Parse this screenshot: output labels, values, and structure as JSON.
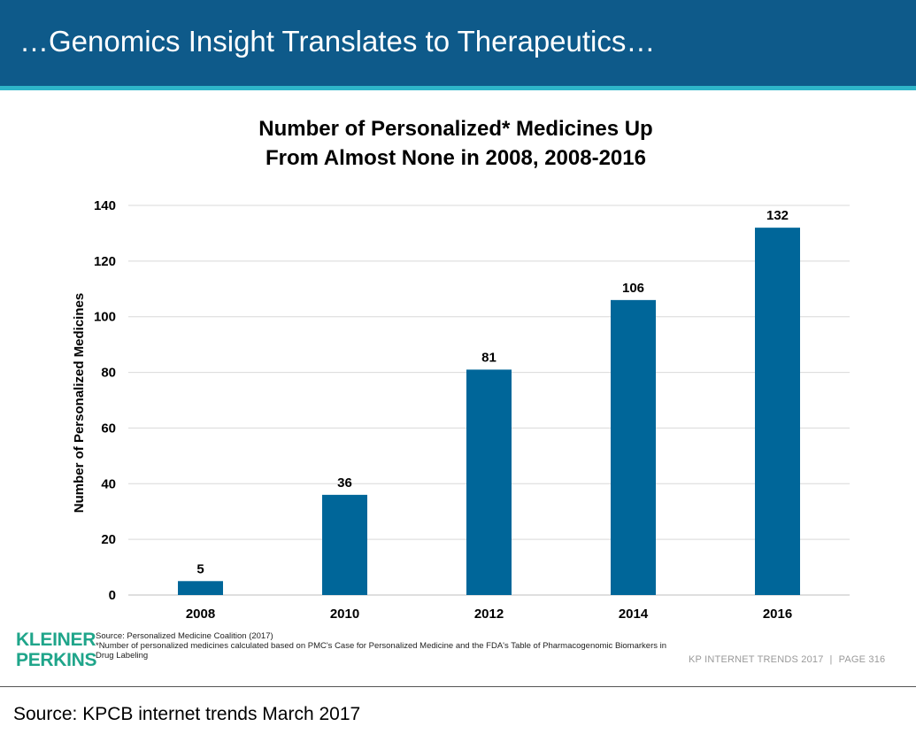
{
  "slide": {
    "title": "…Genomics Insight Translates to Therapeutics…"
  },
  "chart_data": {
    "type": "bar",
    "title_lines": [
      "Number of Personalized* Medicines Up",
      "From Almost None in 2008, 2008-2016"
    ],
    "xlabel": "",
    "ylabel": "Number of Personalized Medicines",
    "categories": [
      "2008",
      "2010",
      "2012",
      "2014",
      "2016"
    ],
    "values": [
      5,
      36,
      81,
      106,
      132
    ],
    "data_labels": [
      "5",
      "36",
      "81",
      "106",
      "132"
    ],
    "ylim": [
      0,
      140
    ],
    "yticks": [
      0,
      20,
      40,
      60,
      80,
      100,
      120,
      140
    ],
    "grid": true,
    "bar_color": "#006699"
  },
  "footer": {
    "logo_line1": "KLEINER",
    "logo_line2": "PERKINS",
    "source": "Source: Personalized Medicine Coalition (2017)",
    "footnote": "*Number of personalized medicines calculated based on PMC's Case for Personalized Medicine and the FDA's Table of Pharmacogenomic Biomarkers in Drug Labeling",
    "report": "KP INTERNET TRENDS 2017",
    "separator": "|",
    "page": "PAGE 316"
  },
  "caption": "Source: KPCB internet trends March 2017",
  "colors": {
    "header_bg": "#0e5a8a",
    "header_rule": "#2eb5c9",
    "logo": "#1fa58a"
  }
}
